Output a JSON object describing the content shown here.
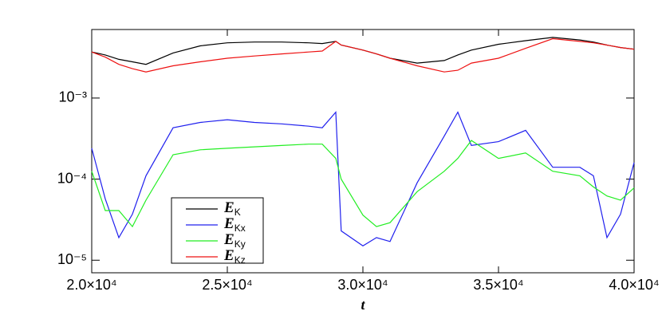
{
  "chart_data": {
    "type": "line",
    "x_label": "t",
    "x": [
      20000,
      20500,
      21000,
      21500,
      22000,
      23000,
      24000,
      25000,
      26000,
      27000,
      28000,
      28500,
      29000,
      29200,
      30000,
      30500,
      31000,
      32000,
      33000,
      33500,
      34000,
      35000,
      36000,
      37000,
      38000,
      38500,
      39000,
      39500,
      40000
    ],
    "series": [
      {
        "name": "EK",
        "color": "#000000",
        "values": [
          0.0037,
          0.0034,
          0.003,
          0.0028,
          0.0026,
          0.0036,
          0.0044,
          0.0048,
          0.0049,
          0.0049,
          0.0048,
          0.0047,
          0.005,
          0.0045,
          0.0039,
          0.0035,
          0.0031,
          0.0027,
          0.0029,
          0.0034,
          0.0039,
          0.0046,
          0.0051,
          0.0056,
          0.0052,
          0.0049,
          0.0045,
          0.0042,
          0.004
        ]
      },
      {
        "name": "EKx",
        "color": "#2020ee",
        "values": [
          0.00024,
          5.7e-05,
          1.9e-05,
          3.7e-05,
          0.00011,
          0.00043,
          0.0005,
          0.00054,
          0.0005,
          0.00048,
          0.00045,
          0.00043,
          0.00067,
          2.3e-05,
          1.5e-05,
          1.9e-05,
          1.7e-05,
          9e-05,
          0.00034,
          0.00067,
          0.00026,
          0.00029,
          0.0004,
          0.00014,
          0.00014,
          0.00011,
          1.9e-05,
          3.7e-05,
          0.00016
        ]
      },
      {
        "name": "EKy",
        "color": "#22ee22",
        "values": [
          0.000125,
          4.1e-05,
          4.1e-05,
          2.6e-05,
          5.5e-05,
          0.0002,
          0.00023,
          0.00024,
          0.00025,
          0.00026,
          0.00027,
          0.00027,
          0.00018,
          0.0001,
          3.6e-05,
          2.6e-05,
          2.9e-05,
          7e-05,
          0.000125,
          0.00018,
          0.0003,
          0.00018,
          0.00021,
          0.000125,
          0.00011,
          8e-05,
          6.2e-05,
          5.5e-05,
          7.8e-05
        ]
      },
      {
        "name": "EKz",
        "color": "#ee1111",
        "values": [
          0.0037,
          0.0032,
          0.0026,
          0.0023,
          0.0021,
          0.0025,
          0.0028,
          0.0031,
          0.0033,
          0.0035,
          0.0037,
          0.0038,
          0.005,
          0.0045,
          0.0039,
          0.0035,
          0.0031,
          0.0025,
          0.0021,
          0.0022,
          0.0027,
          0.0031,
          0.0041,
          0.0054,
          0.005,
          0.0048,
          0.0045,
          0.0042,
          0.004
        ]
      }
    ],
    "xlim": [
      20000,
      40000
    ],
    "xticks": [
      {
        "value": 20000,
        "label": "2.0×10⁴"
      },
      {
        "value": 25000,
        "label": "2.5×10⁴"
      },
      {
        "value": 30000,
        "label": "3.0×10⁴"
      },
      {
        "value": 35000,
        "label": "3.5×10⁴"
      },
      {
        "value": 40000,
        "label": "4.0×10⁴"
      }
    ],
    "ylim": [
      7e-06,
      0.007
    ],
    "yticks": [
      {
        "value": 1e-05,
        "label": "10⁻⁵"
      },
      {
        "value": 0.0001,
        "label": "10⁻⁴"
      },
      {
        "value": 0.001,
        "label": "10⁻³"
      }
    ],
    "y_log": true,
    "legend": "lower-left"
  }
}
